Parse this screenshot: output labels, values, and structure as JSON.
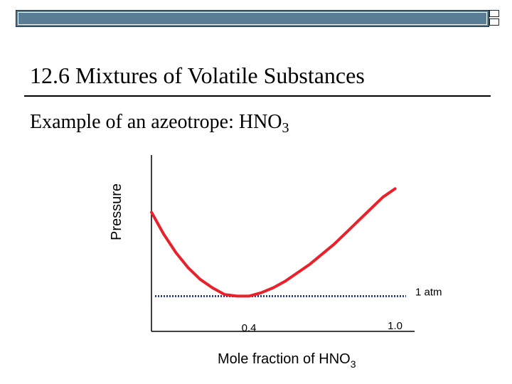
{
  "slide": {
    "title": "12.6  Mixtures of Volatile Substances",
    "subtitle_text": "Example of an azeotrope:  HNO",
    "subtitle_sub": "3"
  },
  "colors": {
    "curve": "#e8212b",
    "reference_line": "#2a3f8f",
    "axes": "#000000",
    "bar": "#5a7d96"
  },
  "chart_data": {
    "type": "line",
    "title": "",
    "ylabel": "Pressure",
    "xlabel_text": "Mole fraction of HNO",
    "xlabel_sub": "3",
    "xlim": [
      0,
      1.08
    ],
    "ylim": [
      0,
      1
    ],
    "x_ticks": [
      {
        "value": 0.4,
        "label": "0.4"
      },
      {
        "value": 1.0,
        "label": "1.0"
      }
    ],
    "reference_line": {
      "y": 0.21,
      "label": "1 atm",
      "style": "dotted"
    },
    "series": [
      {
        "x": [
          0.0,
          0.05,
          0.1,
          0.15,
          0.2,
          0.25,
          0.3,
          0.35,
          0.4,
          0.45,
          0.5,
          0.55,
          0.6,
          0.65,
          0.7,
          0.75,
          0.8,
          0.85,
          0.9,
          0.95,
          1.0
        ],
        "y": [
          0.71,
          0.58,
          0.47,
          0.38,
          0.31,
          0.26,
          0.22,
          0.21,
          0.21,
          0.23,
          0.26,
          0.3,
          0.35,
          0.4,
          0.46,
          0.52,
          0.59,
          0.66,
          0.73,
          0.8,
          0.85
        ]
      }
    ],
    "grid": false
  }
}
